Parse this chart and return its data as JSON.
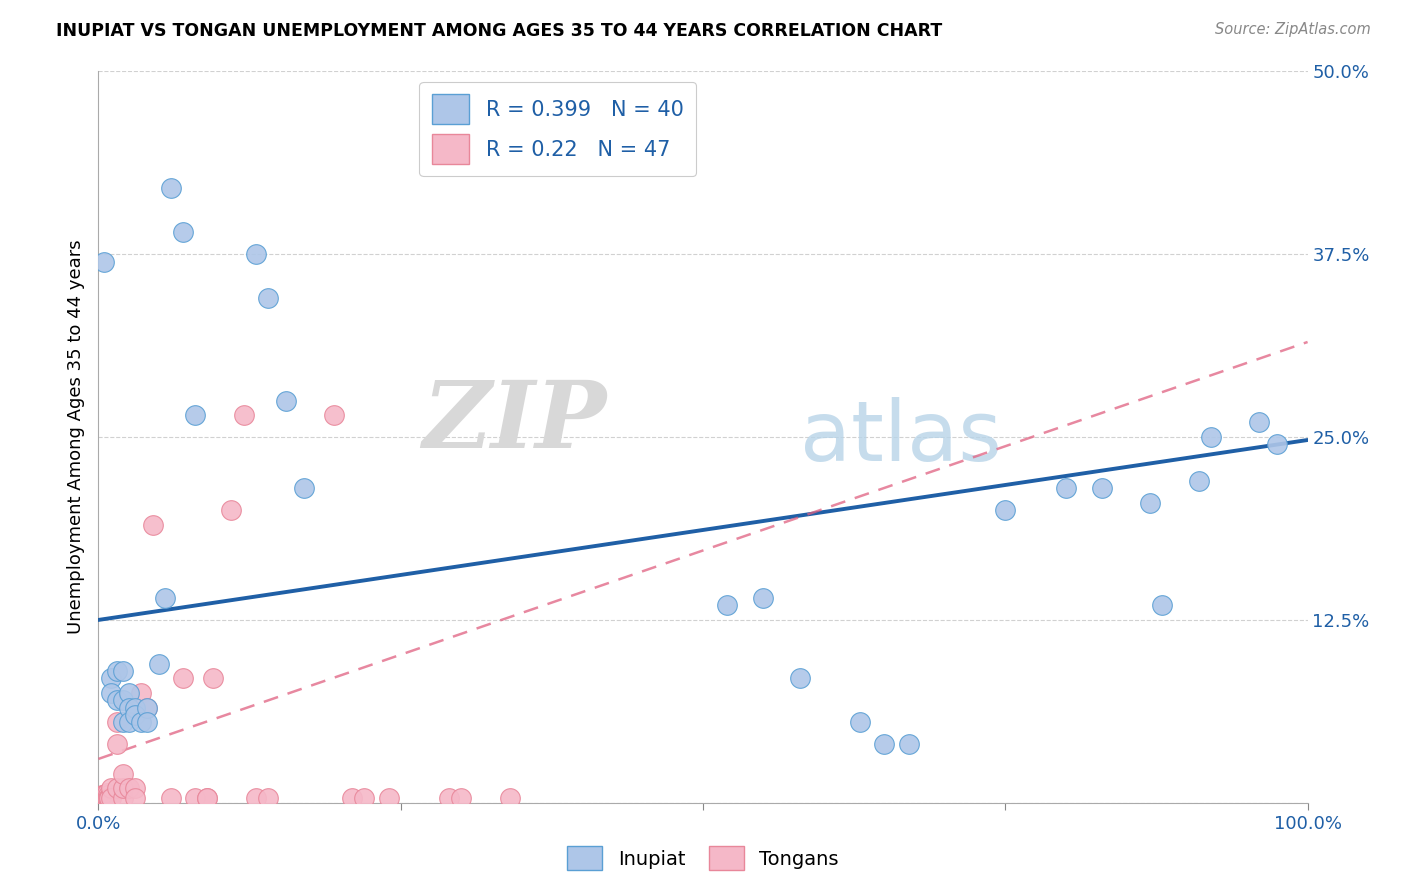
{
  "title": "INUPIAT VS TONGAN UNEMPLOYMENT AMONG AGES 35 TO 44 YEARS CORRELATION CHART",
  "source": "Source: ZipAtlas.com",
  "ylabel": "Unemployment Among Ages 35 to 44 years",
  "xlabel": "",
  "xlim": [
    0,
    1.0
  ],
  "ylim": [
    0,
    0.5
  ],
  "xticks": [
    0.0,
    0.25,
    0.5,
    0.75,
    1.0
  ],
  "xtick_labels": [
    "0.0%",
    "",
    "",
    "",
    "100.0%"
  ],
  "yticks": [
    0.0,
    0.125,
    0.25,
    0.375,
    0.5
  ],
  "ytick_labels": [
    "",
    "12.5%",
    "25.0%",
    "37.5%",
    "50.0%"
  ],
  "inupiat_color": "#aec6e8",
  "tongan_color": "#f5b8c8",
  "inupiat_edge_color": "#5a9fd4",
  "tongan_edge_color": "#e8879a",
  "inupiat_line_color": "#1f5fa6",
  "tongan_line_color": "#e06080",
  "inupiat_R": 0.399,
  "inupiat_N": 40,
  "tongan_R": 0.22,
  "tongan_N": 47,
  "legend_label_inupiat": "Inupiat",
  "legend_label_tongan": "Tongans",
  "watermark_zip": "ZIP",
  "watermark_atlas": "atlas",
  "background_color": "#ffffff",
  "grid_color": "#cccccc",
  "inupiat_x": [
    0.005,
    0.01,
    0.01,
    0.015,
    0.015,
    0.02,
    0.02,
    0.02,
    0.025,
    0.025,
    0.025,
    0.03,
    0.03,
    0.035,
    0.04,
    0.04,
    0.05,
    0.055,
    0.06,
    0.07,
    0.08,
    0.13,
    0.14,
    0.155,
    0.17,
    0.52,
    0.55,
    0.58,
    0.63,
    0.65,
    0.67,
    0.75,
    0.8,
    0.83,
    0.87,
    0.88,
    0.91,
    0.92,
    0.96,
    0.975
  ],
  "inupiat_y": [
    0.37,
    0.085,
    0.075,
    0.09,
    0.07,
    0.09,
    0.07,
    0.055,
    0.075,
    0.065,
    0.055,
    0.065,
    0.06,
    0.055,
    0.065,
    0.055,
    0.095,
    0.14,
    0.42,
    0.39,
    0.265,
    0.375,
    0.345,
    0.275,
    0.215,
    0.135,
    0.14,
    0.085,
    0.055,
    0.04,
    0.04,
    0.2,
    0.215,
    0.215,
    0.205,
    0.135,
    0.22,
    0.25,
    0.26,
    0.245
  ],
  "tongan_x": [
    0.003,
    0.003,
    0.004,
    0.004,
    0.005,
    0.005,
    0.005,
    0.005,
    0.006,
    0.006,
    0.007,
    0.007,
    0.008,
    0.008,
    0.009,
    0.009,
    0.01,
    0.01,
    0.015,
    0.015,
    0.015,
    0.02,
    0.02,
    0.02,
    0.025,
    0.03,
    0.03,
    0.035,
    0.04,
    0.045,
    0.06,
    0.07,
    0.08,
    0.09,
    0.09,
    0.095,
    0.11,
    0.12,
    0.13,
    0.14,
    0.195,
    0.21,
    0.22,
    0.24,
    0.29,
    0.3,
    0.34
  ],
  "tongan_y": [
    0.005,
    0.003,
    0.005,
    0.003,
    0.005,
    0.003,
    0.003,
    0.003,
    0.005,
    0.003,
    0.007,
    0.003,
    0.005,
    0.003,
    0.003,
    0.003,
    0.01,
    0.003,
    0.055,
    0.04,
    0.01,
    0.003,
    0.01,
    0.02,
    0.01,
    0.01,
    0.003,
    0.075,
    0.065,
    0.19,
    0.003,
    0.085,
    0.003,
    0.003,
    0.003,
    0.085,
    0.2,
    0.265,
    0.003,
    0.003,
    0.265,
    0.003,
    0.003,
    0.003,
    0.003,
    0.003,
    0.003
  ],
  "inupiat_line_x0": 0.0,
  "inupiat_line_y0": 0.125,
  "inupiat_line_x1": 1.0,
  "inupiat_line_y1": 0.248,
  "tongan_line_x0": 0.0,
  "tongan_line_y0": 0.03,
  "tongan_line_x1": 1.0,
  "tongan_line_y1": 0.315
}
